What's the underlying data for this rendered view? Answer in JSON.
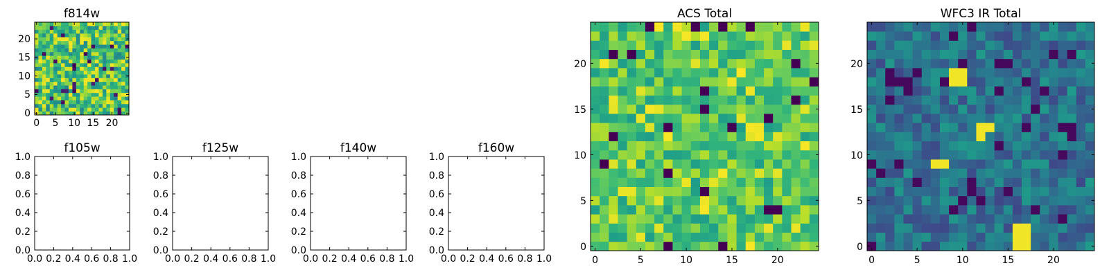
{
  "chart_data": [
    {
      "type": "heatmap",
      "title": "f814w",
      "xlim": [
        -0.5,
        24.5
      ],
      "ylim": [
        -0.5,
        24.5
      ],
      "xticks": [
        0,
        5,
        10,
        15,
        20
      ],
      "yticks": [
        0,
        5,
        10,
        15,
        20
      ],
      "grid_size": [
        25,
        25
      ],
      "colormap": "viridis",
      "origin": "lower"
    },
    {
      "type": "empty",
      "title": "f105w",
      "xlim": [
        0.0,
        1.0
      ],
      "ylim": [
        0.0,
        1.0
      ],
      "xticks": [
        "0.0",
        "0.2",
        "0.4",
        "0.6",
        "0.8",
        "1.0"
      ],
      "yticks": [
        "0.0",
        "0.2",
        "0.4",
        "0.6",
        "0.8",
        "1.0"
      ]
    },
    {
      "type": "empty",
      "title": "f125w",
      "xlim": [
        0.0,
        1.0
      ],
      "ylim": [
        0.0,
        1.0
      ],
      "xticks": [
        "0.0",
        "0.2",
        "0.4",
        "0.6",
        "0.8",
        "1.0"
      ],
      "yticks": [
        "0.0",
        "0.2",
        "0.4",
        "0.6",
        "0.8",
        "1.0"
      ]
    },
    {
      "type": "empty",
      "title": "f140w",
      "xlim": [
        0.0,
        1.0
      ],
      "ylim": [
        0.0,
        1.0
      ],
      "xticks": [
        "0.0",
        "0.2",
        "0.4",
        "0.6",
        "0.8",
        "1.0"
      ],
      "yticks": [
        "0.0",
        "0.2",
        "0.4",
        "0.6",
        "0.8",
        "1.0"
      ]
    },
    {
      "type": "empty",
      "title": "f160w",
      "xlim": [
        0.0,
        1.0
      ],
      "ylim": [
        0.0,
        1.0
      ],
      "xticks": [
        "0.0",
        "0.2",
        "0.4",
        "0.6",
        "0.8",
        "1.0"
      ],
      "yticks": [
        "0.0",
        "0.2",
        "0.4",
        "0.6",
        "0.8",
        "1.0"
      ]
    },
    {
      "type": "heatmap",
      "title": "ACS Total",
      "xlim": [
        -0.5,
        24.5
      ],
      "ylim": [
        -0.5,
        24.5
      ],
      "xticks": [
        0,
        5,
        10,
        15,
        20
      ],
      "yticks": [
        0,
        5,
        10,
        15,
        20
      ],
      "grid_size": [
        25,
        25
      ],
      "colormap": "viridis",
      "origin": "lower"
    },
    {
      "type": "heatmap",
      "title": "WFC3 IR Total",
      "xlim": [
        -0.5,
        24.5
      ],
      "ylim": [
        -0.5,
        24.5
      ],
      "xticks": [
        0,
        5,
        10,
        15,
        20
      ],
      "yticks": [
        0,
        5,
        10,
        15,
        20
      ],
      "grid_size": [
        25,
        25
      ],
      "colormap": "viridis",
      "origin": "lower"
    }
  ]
}
